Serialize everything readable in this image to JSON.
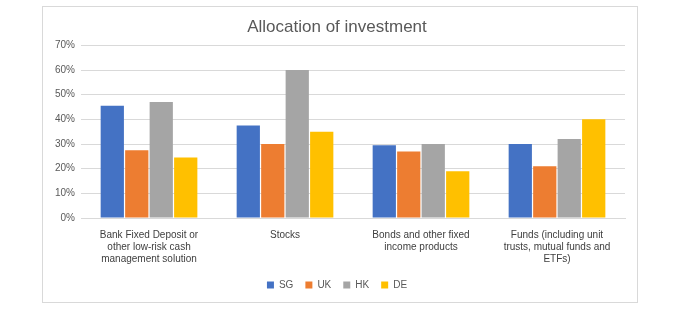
{
  "chart_data": {
    "type": "bar",
    "title": "Allocation of investment",
    "categories": [
      "Bank Fixed Deposit or other low-risk cash management solution",
      "Stocks",
      "Bonds and other fixed income products",
      "Funds (including unit trusts, mutual funds and ETFs)"
    ],
    "series": [
      {
        "name": "SG",
        "color": "#4472c4",
        "values": [
          45.5,
          37.5,
          29.5,
          30
        ]
      },
      {
        "name": "UK",
        "color": "#ed7d31",
        "values": [
          27.5,
          30,
          27,
          21
        ]
      },
      {
        "name": "HK",
        "color": "#a5a5a5",
        "values": [
          47,
          60,
          30,
          32
        ]
      },
      {
        "name": "DE",
        "color": "#ffc000",
        "values": [
          24.5,
          35,
          19,
          40
        ]
      }
    ],
    "ylim": [
      0,
      70
    ],
    "yticks": [
      {
        "value": 0,
        "label": "0%"
      },
      {
        "value": 10,
        "label": "10%"
      },
      {
        "value": 20,
        "label": "20%"
      },
      {
        "value": 30,
        "label": "30%"
      },
      {
        "value": 40,
        "label": "40%"
      },
      {
        "value": 50,
        "label": "50%"
      },
      {
        "value": 60,
        "label": "60%"
      },
      {
        "value": 70,
        "label": "70%"
      }
    ],
    "grid": true,
    "legend": "bottom"
  }
}
